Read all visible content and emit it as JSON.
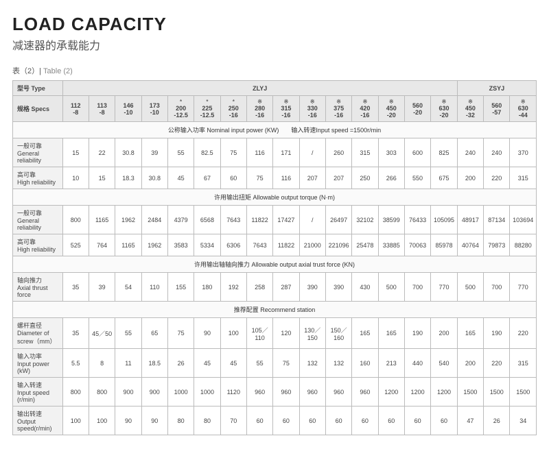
{
  "title": "LOAD CAPACITY",
  "subtitle": "减速器的承载能力",
  "table_label_cn": "表（2）| ",
  "table_label_en": "Table (2)",
  "head": {
    "type": "型号 Type",
    "zlyj": "ZLYJ",
    "zsyj": "ZSYJ",
    "specs": "规格 Specs"
  },
  "columns": [
    {
      "t": "",
      "m": "112",
      "b": "-8"
    },
    {
      "t": "",
      "m": "113",
      "b": "-8"
    },
    {
      "t": "",
      "m": "146",
      "b": "-10"
    },
    {
      "t": "",
      "m": "173",
      "b": "-10"
    },
    {
      "t": "*",
      "m": "200",
      "b": "-12.5"
    },
    {
      "t": "*",
      "m": "225",
      "b": "-12.5"
    },
    {
      "t": "*",
      "m": "250",
      "b": "-16"
    },
    {
      "t": "※",
      "m": "280",
      "b": "-16"
    },
    {
      "t": "※",
      "m": "315",
      "b": "-16"
    },
    {
      "t": "※",
      "m": "330",
      "b": "-16"
    },
    {
      "t": "※",
      "m": "375",
      "b": "-16"
    },
    {
      "t": "※",
      "m": "420",
      "b": "-16"
    },
    {
      "t": "※",
      "m": "450",
      "b": "-20"
    },
    {
      "t": "",
      "m": "560",
      "b": "-20"
    },
    {
      "t": "※",
      "m": "630",
      "b": "-20"
    },
    {
      "t": "※",
      "m": "450",
      "b": "-32"
    },
    {
      "t": "",
      "m": "560",
      "b": "-57"
    },
    {
      "t": "※",
      "m": "630",
      "b": "-44"
    }
  ],
  "sections": [
    {
      "title": "公称输入功率 Nominal input power (KW)　　输入转速Input speed =1500r/min",
      "rows": [
        {
          "label": "一般可靠\nGeneral reliability",
          "v": [
            "15",
            "22",
            "30.8",
            "39",
            "55",
            "82.5",
            "75",
            "116",
            "171",
            "/",
            "260",
            "315",
            "303",
            "600",
            "825",
            "240",
            "240",
            "370"
          ]
        },
        {
          "label": "高可靠\nHigh reliability",
          "v": [
            "10",
            "15",
            "18.3",
            "30.8",
            "45",
            "67",
            "60",
            "75",
            "116",
            "207",
            "207",
            "250",
            "266",
            "550",
            "675",
            "200",
            "220",
            "315"
          ]
        }
      ]
    },
    {
      "title": "许用输出扭矩 Allowable output torque (N·m)",
      "rows": [
        {
          "label": "一般可靠\nGeneral reliability",
          "v": [
            "800",
            "1165",
            "1962",
            "2484",
            "4379",
            "6568",
            "7643",
            "11822",
            "17427",
            "/",
            "26497",
            "32102",
            "38599",
            "76433",
            "105095",
            "48917",
            "87134",
            "103694"
          ]
        },
        {
          "label": "高可靠\nHigh reliability",
          "v": [
            "525",
            "764",
            "1165",
            "1962",
            "3583",
            "5334",
            "6306",
            "7643",
            "11822",
            "21000",
            "221096",
            "25478",
            "33885",
            "70063",
            "85978",
            "40764",
            "79873",
            "88280"
          ]
        }
      ]
    },
    {
      "title": "许用输出轴轴向推力 Allowable output axial trust force (KN)",
      "rows": [
        {
          "label": "轴向推力\nAxial thrust force",
          "v": [
            "35",
            "39",
            "54",
            "110",
            "155",
            "180",
            "192",
            "258",
            "287",
            "390",
            "390",
            "430",
            "500",
            "700",
            "770",
            "500",
            "700",
            "770"
          ]
        }
      ]
    },
    {
      "title": "推荐配置 Recommend station",
      "rows": [
        {
          "label": "螺杆直径\nDiameter of screw（mm）",
          "v": [
            "35",
            "45／50",
            "55",
            "65",
            "75",
            "90",
            "100",
            "105／110",
            "120",
            "130／150",
            "150／160",
            "165",
            "165",
            "190",
            "200",
            "165",
            "190",
            "220"
          ]
        },
        {
          "label": "输入功率\nInput power (kW)",
          "v": [
            "5.5",
            "8",
            "11",
            "18.5",
            "26",
            "45",
            "45",
            "55",
            "75",
            "132",
            "132",
            "160",
            "213",
            "440",
            "540",
            "200",
            "220",
            "315"
          ]
        },
        {
          "label": "输入转速\nInput speed (r/min)",
          "v": [
            "800",
            "800",
            "900",
            "900",
            "1000",
            "1000",
            "1120",
            "960",
            "960",
            "960",
            "960",
            "960",
            "1200",
            "1200",
            "1200",
            "1500",
            "1500",
            "1500"
          ]
        },
        {
          "label": "输出转速\nOutput speed(r/min)",
          "v": [
            "100",
            "100",
            "90",
            "90",
            "80",
            "80",
            "70",
            "60",
            "60",
            "60",
            "60",
            "60",
            "60",
            "60",
            "60",
            "47",
            "26",
            "34"
          ]
        }
      ]
    }
  ]
}
